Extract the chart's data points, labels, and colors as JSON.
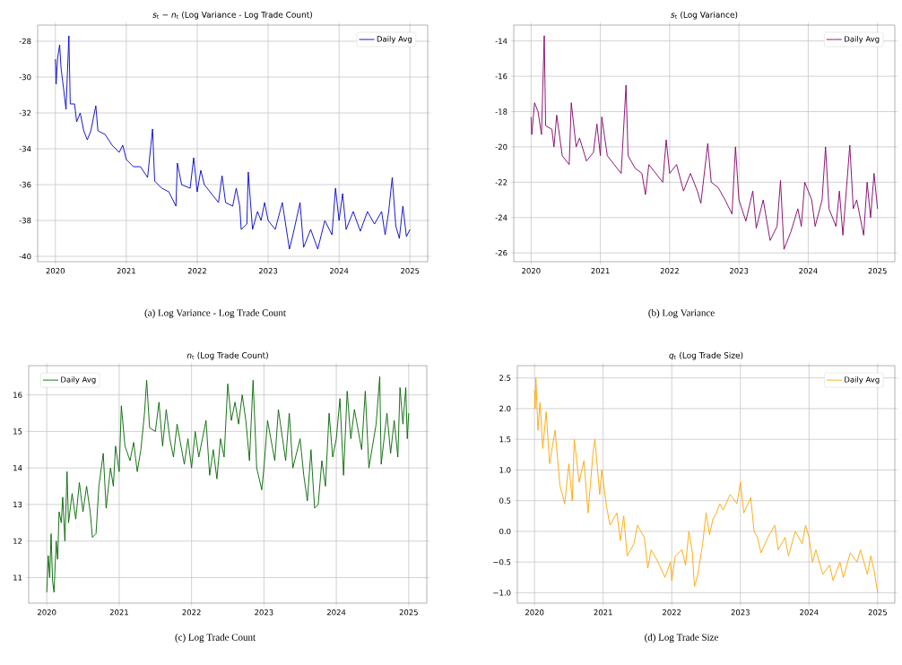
{
  "chart_data": [
    {
      "type": "line",
      "title": "*s*$_{t}$ − *n*$_{t}$ (Log Variance - Log Trade Count)",
      "annotations": [
        "(a) Log Variance - Log Trade Count"
      ],
      "grid": true,
      "legend": "top right",
      "xlim": [
        2019.75,
        2025.25
      ],
      "xticks": [
        2020,
        2021,
        2022,
        2023,
        2024,
        2025
      ],
      "ylim": [
        -40.3,
        -27.1
      ],
      "yticks": [
        -40,
        -38,
        -36,
        -34,
        -32,
        -30,
        -28
      ],
      "x": [
        2020.0,
        2020.01,
        2020.03,
        2020.06,
        2020.08,
        2020.12,
        2020.15,
        2020.19,
        2020.21,
        2020.27,
        2020.3,
        2020.35,
        2020.4,
        2020.45,
        2020.5,
        2020.57,
        2020.6,
        2020.7,
        2020.8,
        2020.9,
        2020.95,
        2021.0,
        2021.1,
        2021.2,
        2021.3,
        2021.37,
        2021.4,
        2021.5,
        2021.6,
        2021.65,
        2021.7,
        2021.72,
        2021.78,
        2021.9,
        2021.95,
        2022.0,
        2022.05,
        2022.1,
        2022.2,
        2022.3,
        2022.35,
        2022.4,
        2022.5,
        2022.55,
        2022.6,
        2022.62,
        2022.7,
        2022.72,
        2022.78,
        2022.85,
        2022.9,
        2022.95,
        2023.0,
        2023.1,
        2023.2,
        2023.3,
        2023.35,
        2023.45,
        2023.5,
        2023.6,
        2023.7,
        2023.8,
        2023.9,
        2023.95,
        2024.0,
        2024.05,
        2024.1,
        2024.2,
        2024.3,
        2024.4,
        2024.5,
        2024.6,
        2024.65,
        2024.7,
        2024.75,
        2024.8,
        2024.85,
        2024.9,
        2024.95,
        2025.0
      ],
      "series": [
        {
          "name": "Daily Avg",
          "color": "#0000cc",
          "values": [
            -29.0,
            -30.4,
            -29.0,
            -28.2,
            -29.5,
            -30.8,
            -31.8,
            -27.7,
            -31.5,
            -31.5,
            -32.5,
            -32.0,
            -33.0,
            -33.5,
            -33.0,
            -31.6,
            -33.0,
            -33.2,
            -33.8,
            -34.2,
            -33.8,
            -34.6,
            -35.0,
            -35.0,
            -35.6,
            -32.9,
            -35.8,
            -36.2,
            -36.4,
            -36.8,
            -37.2,
            -34.8,
            -36.0,
            -36.2,
            -34.5,
            -36.4,
            -35.2,
            -36.0,
            -36.5,
            -37.0,
            -35.5,
            -37.0,
            -37.2,
            -36.2,
            -37.2,
            -38.5,
            -38.2,
            -35.3,
            -38.5,
            -37.5,
            -38.0,
            -37.0,
            -38.0,
            -38.5,
            -37.0,
            -39.6,
            -38.8,
            -37.0,
            -39.5,
            -38.5,
            -39.6,
            -38.0,
            -38.8,
            -36.2,
            -38.0,
            -36.5,
            -38.5,
            -37.5,
            -38.6,
            -37.5,
            -38.2,
            -37.5,
            -38.8,
            -37.5,
            -35.6,
            -38.3,
            -39.0,
            -37.2,
            -38.9,
            -38.5
          ]
        }
      ]
    },
    {
      "type": "line",
      "title": "*s*$_{t}$ (Log Variance)",
      "annotations": [
        "(b) Log Variance"
      ],
      "grid": true,
      "legend": "top right",
      "xlim": [
        2019.75,
        2025.25
      ],
      "xticks": [
        2020,
        2021,
        2022,
        2023,
        2024,
        2025
      ],
      "ylim": [
        -26.5,
        -13.1
      ],
      "yticks": [
        -26,
        -24,
        -22,
        -20,
        -18,
        -16,
        -14
      ],
      "x": [
        2020.0,
        2020.01,
        2020.05,
        2020.1,
        2020.15,
        2020.19,
        2020.21,
        2020.3,
        2020.33,
        2020.37,
        2020.45,
        2020.55,
        2020.58,
        2020.65,
        2020.7,
        2020.8,
        2020.9,
        2020.95,
        2021.0,
        2021.02,
        2021.1,
        2021.2,
        2021.3,
        2021.37,
        2021.4,
        2021.5,
        2021.6,
        2021.65,
        2021.7,
        2021.8,
        2021.9,
        2021.95,
        2022.0,
        2022.1,
        2022.2,
        2022.3,
        2022.4,
        2022.45,
        2022.5,
        2022.55,
        2022.6,
        2022.7,
        2022.8,
        2022.9,
        2022.95,
        2023.0,
        2023.1,
        2023.2,
        2023.25,
        2023.35,
        2023.45,
        2023.55,
        2023.6,
        2023.65,
        2023.75,
        2023.85,
        2023.9,
        2023.95,
        2024.05,
        2024.1,
        2024.2,
        2024.25,
        2024.3,
        2024.4,
        2024.45,
        2024.5,
        2024.6,
        2024.65,
        2024.7,
        2024.8,
        2024.85,
        2024.9,
        2024.95,
        2025.0
      ],
      "series": [
        {
          "name": "Daily Avg",
          "color": "#800066",
          "values": [
            -18.3,
            -19.3,
            -17.5,
            -18.0,
            -19.3,
            -13.7,
            -18.8,
            -19.0,
            -20.0,
            -18.2,
            -20.5,
            -21.0,
            -17.5,
            -20.0,
            -19.5,
            -20.8,
            -20.3,
            -18.7,
            -20.5,
            -18.3,
            -20.5,
            -21.0,
            -21.5,
            -16.5,
            -20.5,
            -21.2,
            -21.5,
            -22.7,
            -21.0,
            -21.5,
            -22.0,
            -19.6,
            -21.5,
            -21.0,
            -22.5,
            -21.5,
            -22.5,
            -23.2,
            -21.5,
            -19.8,
            -22.0,
            -22.3,
            -23.0,
            -23.8,
            -20.0,
            -23.0,
            -24.2,
            -22.5,
            -24.6,
            -23.0,
            -25.3,
            -24.5,
            -21.9,
            -25.8,
            -24.8,
            -23.5,
            -24.5,
            -22.0,
            -23.0,
            -24.5,
            -23.0,
            -20.0,
            -23.5,
            -24.5,
            -22.5,
            -25.0,
            -19.9,
            -23.5,
            -23.0,
            -25.0,
            -22.0,
            -24.0,
            -21.5,
            -23.5
          ]
        }
      ]
    },
    {
      "type": "line",
      "title": "*n*$_{t}$ (Log Trade Count)",
      "annotations": [
        "(c) Log Trade Count"
      ],
      "grid": true,
      "legend": "top left",
      "xlim": [
        2019.75,
        2025.25
      ],
      "xticks": [
        2020,
        2021,
        2022,
        2023,
        2024,
        2025
      ],
      "ylim": [
        10.3,
        16.8
      ],
      "yticks": [
        11,
        12,
        13,
        14,
        15,
        16
      ],
      "x": [
        2020.0,
        2020.02,
        2020.04,
        2020.06,
        2020.08,
        2020.1,
        2020.13,
        2020.15,
        2020.17,
        2020.2,
        2020.22,
        2020.25,
        2020.28,
        2020.3,
        2020.35,
        2020.4,
        2020.45,
        2020.5,
        2020.55,
        2020.6,
        2020.63,
        2020.68,
        2020.72,
        2020.78,
        2020.82,
        2020.88,
        2020.92,
        2020.95,
        2021.0,
        2021.03,
        2021.08,
        2021.15,
        2021.2,
        2021.25,
        2021.3,
        2021.35,
        2021.38,
        2021.42,
        2021.5,
        2021.55,
        2021.6,
        2021.65,
        2021.7,
        2021.75,
        2021.8,
        2021.9,
        2021.95,
        2022.0,
        2022.05,
        2022.1,
        2022.2,
        2022.25,
        2022.3,
        2022.35,
        2022.4,
        2022.45,
        2022.5,
        2022.55,
        2022.6,
        2022.65,
        2022.7,
        2022.75,
        2022.8,
        2022.85,
        2022.9,
        2022.97,
        2023.0,
        2023.05,
        2023.15,
        2023.2,
        2023.3,
        2023.35,
        2023.4,
        2023.5,
        2023.55,
        2023.6,
        2023.65,
        2023.7,
        2023.75,
        2023.8,
        2023.85,
        2023.9,
        2023.95,
        2024.0,
        2024.05,
        2024.1,
        2024.15,
        2024.2,
        2024.25,
        2024.35,
        2024.4,
        2024.45,
        2024.55,
        2024.6,
        2024.62,
        2024.7,
        2024.75,
        2024.8,
        2024.85,
        2024.88,
        2024.92,
        2024.96,
        2024.98,
        2025.0
      ],
      "series": [
        {
          "name": "Daily Avg",
          "color": "#006400",
          "values": [
            10.6,
            11.6,
            11.0,
            12.2,
            10.9,
            10.6,
            12.0,
            11.5,
            12.8,
            12.5,
            13.2,
            12.0,
            13.9,
            12.5,
            13.3,
            12.6,
            13.6,
            12.8,
            13.5,
            12.8,
            12.1,
            12.2,
            13.5,
            14.4,
            12.9,
            14.0,
            13.5,
            14.6,
            13.9,
            15.7,
            14.6,
            14.2,
            14.7,
            13.9,
            14.5,
            15.5,
            16.4,
            15.1,
            15.0,
            15.8,
            14.6,
            15.6,
            14.8,
            14.3,
            15.2,
            14.1,
            14.8,
            14.0,
            15.0,
            14.3,
            15.3,
            13.8,
            14.5,
            13.7,
            14.8,
            14.3,
            16.3,
            15.3,
            15.8,
            15.2,
            16.0,
            15.3,
            14.2,
            16.4,
            14.0,
            13.4,
            14.0,
            15.3,
            14.2,
            15.6,
            14.2,
            15.5,
            14.0,
            14.8,
            13.8,
            13.1,
            14.5,
            12.9,
            13.0,
            14.2,
            13.5,
            15.5,
            14.3,
            14.8,
            15.9,
            13.8,
            16.1,
            14.8,
            15.6,
            14.5,
            16.1,
            14.0,
            15.2,
            16.5,
            14.1,
            15.5,
            14.4,
            15.3,
            14.3,
            16.2,
            15.2,
            16.2,
            14.8,
            15.5
          ]
        }
      ]
    },
    {
      "type": "line",
      "title": "*q*$_{t}$ (Log Trade Size)",
      "annotations": [
        "(d) Log Trade Size"
      ],
      "grid": true,
      "legend": "top right",
      "xlim": [
        2019.75,
        2025.25
      ],
      "xticks": [
        2020,
        2021,
        2022,
        2023,
        2024,
        2025
      ],
      "ylim": [
        -1.17,
        2.7
      ],
      "yticks": [
        {
          "value": -1.0,
          "label": "−1.0"
        },
        {
          "value": -0.5,
          "label": "−0.5"
        },
        {
          "value": 0.0,
          "label": "0.0"
        },
        {
          "value": 0.5,
          "label": "0.5"
        },
        {
          "value": 1.0,
          "label": "1.0"
        },
        {
          "value": 1.5,
          "label": "1.5"
        },
        {
          "value": 2.0,
          "label": "2.0"
        },
        {
          "value": 2.5,
          "label": "2.5"
        }
      ],
      "x": [
        2020.0,
        2020.01,
        2020.02,
        2020.05,
        2020.08,
        2020.12,
        2020.17,
        2020.22,
        2020.3,
        2020.37,
        2020.44,
        2020.5,
        2020.55,
        2020.58,
        2020.65,
        2020.72,
        2020.78,
        2020.85,
        2020.88,
        2020.95,
        2020.98,
        2021.05,
        2021.1,
        2021.2,
        2021.25,
        2021.3,
        2021.35,
        2021.45,
        2021.5,
        2021.6,
        2021.65,
        2021.7,
        2021.8,
        2021.9,
        2021.98,
        2022.0,
        2022.05,
        2022.15,
        2022.2,
        2022.25,
        2022.3,
        2022.33,
        2022.38,
        2022.45,
        2022.5,
        2022.55,
        2022.6,
        2022.65,
        2022.7,
        2022.75,
        2022.85,
        2022.95,
        2023.0,
        2023.05,
        2023.15,
        2023.2,
        2023.25,
        2023.3,
        2023.4,
        2023.5,
        2023.55,
        2023.65,
        2023.7,
        2023.8,
        2023.9,
        2023.95,
        2024.0,
        2024.05,
        2024.1,
        2024.2,
        2024.3,
        2024.35,
        2024.45,
        2024.5,
        2024.6,
        2024.7,
        2024.75,
        2024.8,
        2024.85,
        2024.9,
        2024.95,
        2025.0
      ],
      "series": [
        {
          "name": "Daily Avg",
          "color": "#ffa500",
          "values": [
            2.3,
            2.0,
            2.5,
            1.65,
            2.1,
            1.35,
            1.95,
            1.1,
            1.65,
            0.75,
            0.45,
            1.1,
            0.5,
            1.5,
            0.8,
            1.15,
            0.3,
            1.25,
            1.5,
            0.6,
            1.0,
            0.4,
            0.1,
            0.3,
            -0.15,
            0.25,
            -0.4,
            -0.2,
            0.1,
            -0.1,
            -0.6,
            -0.3,
            -0.5,
            -0.75,
            -0.5,
            -0.8,
            -0.4,
            -0.3,
            -0.55,
            0.0,
            -0.35,
            -0.9,
            -0.7,
            -0.2,
            0.3,
            -0.05,
            0.2,
            0.3,
            0.45,
            0.35,
            0.6,
            0.45,
            0.8,
            0.3,
            0.55,
            0.0,
            -0.1,
            -0.35,
            -0.1,
            0.1,
            -0.3,
            -0.1,
            -0.4,
            0.0,
            -0.2,
            0.1,
            -0.1,
            -0.5,
            -0.3,
            -0.7,
            -0.55,
            -0.8,
            -0.5,
            -0.75,
            -0.35,
            -0.5,
            -0.3,
            -0.5,
            -0.7,
            -0.4,
            -0.65,
            -1.0
          ]
        }
      ]
    }
  ]
}
